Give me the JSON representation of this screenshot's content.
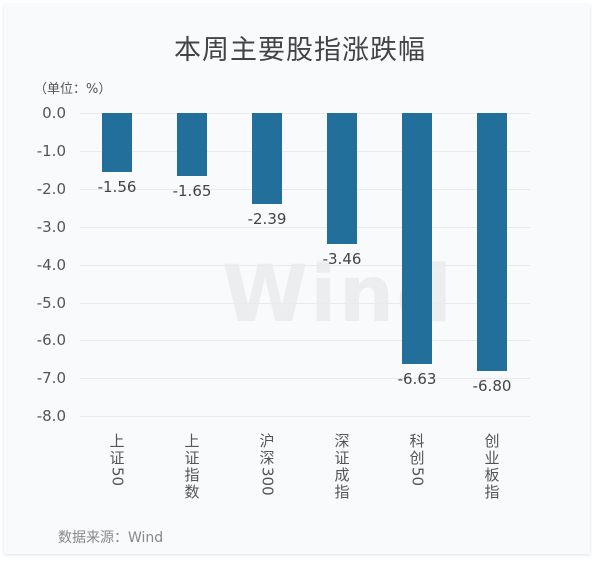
{
  "title": "本周主要股指涨跌幅",
  "unit_label": "（单位：%）",
  "source": "数据来源：Wind",
  "watermark": "Wind",
  "colors": {
    "bar": "#236f9b",
    "background": "#f9fafc",
    "grid": "#e8eaee"
  },
  "y_ticks": [
    "0.0",
    "-1.0",
    "-2.0",
    "-3.0",
    "-4.0",
    "-5.0",
    "-6.0",
    "-7.0",
    "-8.0"
  ],
  "bars": [
    {
      "label": "上证50",
      "value": -1.56,
      "value_label": "-1.56"
    },
    {
      "label": "上证指数",
      "value": -1.65,
      "value_label": "-1.65"
    },
    {
      "label": "沪深300",
      "value": -2.39,
      "value_label": "-2.39"
    },
    {
      "label": "深证成指",
      "value": -3.46,
      "value_label": "-3.46"
    },
    {
      "label": "科创50",
      "value": -6.63,
      "value_label": "-6.63"
    },
    {
      "label": "创业板指",
      "value": -6.8,
      "value_label": "-6.80"
    }
  ],
  "chart_data": {
    "type": "bar",
    "title": "本周主要股指涨跌幅",
    "categories": [
      "上证50",
      "上证指数",
      "沪深300",
      "深证成指",
      "科创50",
      "创业板指"
    ],
    "values": [
      -1.56,
      -1.65,
      -2.39,
      -3.46,
      -6.63,
      -6.8
    ],
    "xlabel": "",
    "ylabel": "（单位：%）",
    "ylim": [
      -8.0,
      0.0
    ],
    "yticks": [
      0.0,
      -1.0,
      -2.0,
      -3.0,
      -4.0,
      -5.0,
      -6.0,
      -7.0,
      -8.0
    ],
    "grid": true,
    "legend": "none",
    "data_labels": true,
    "source": "数据来源：Wind"
  }
}
